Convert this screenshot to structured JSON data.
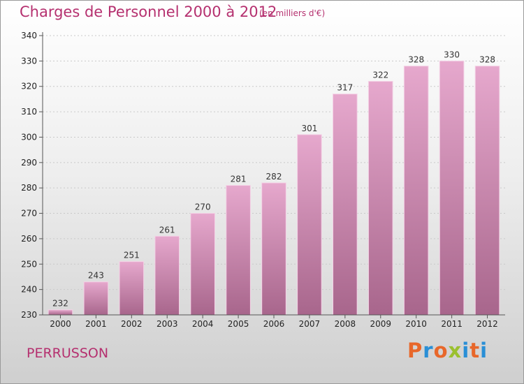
{
  "header": {
    "title": "Charges de Personnel 2000 à 2012",
    "subtitle": "(en milliers d'€)"
  },
  "footer": {
    "city": "PERRUSSON",
    "logo": "Proxiti",
    "logo_colors": [
      "#e8672a",
      "#2a8fd6",
      "#e8672a",
      "#9bc02f",
      "#2a8fd6",
      "#e8672a",
      "#2a8fd6"
    ]
  },
  "colors": {
    "accent": "#b5306f",
    "bar_top": "#e6a8cd",
    "bar_bottom": "#a8668c",
    "bar_edge": "#f4d2e6"
  },
  "chart_data": {
    "type": "bar",
    "title": "Charges de Personnel 2000 à 2012",
    "subtitle": "(en milliers d'€)",
    "categories": [
      "2000",
      "2001",
      "2002",
      "2003",
      "2004",
      "2005",
      "2006",
      "2007",
      "2008",
      "2009",
      "2010",
      "2011",
      "2012"
    ],
    "values": [
      232,
      243,
      251,
      261,
      270,
      281,
      282,
      301,
      317,
      322,
      328,
      330,
      328
    ],
    "ylim": [
      230,
      340
    ],
    "yticks": [
      230,
      240,
      250,
      260,
      270,
      280,
      290,
      300,
      310,
      320,
      330,
      340
    ],
    "grid": true,
    "legend": "none"
  }
}
